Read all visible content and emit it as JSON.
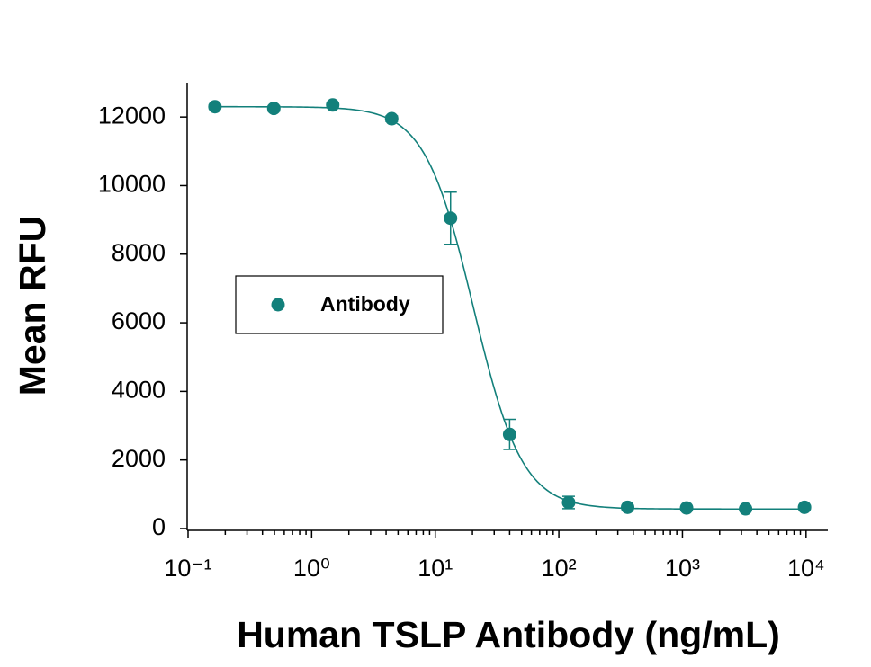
{
  "chart_data": {
    "type": "scatter",
    "x_label": "Human TSLP Antibody (ng/mL)",
    "y_label": "Mean RFU",
    "x_scale": "log",
    "x": [
      0.165,
      0.494,
      1.48,
      4.44,
      13.3,
      40,
      120,
      360,
      1080,
      3240,
      9720
    ],
    "series": [
      {
        "name": "Antibody",
        "color": "#13807b",
        "values": [
          12300,
          12250,
          12350,
          11950,
          9050,
          2745,
          760,
          620,
          600,
          575,
          620
        ],
        "errors": [
          60,
          80,
          50,
          80,
          760,
          440,
          180,
          50,
          40,
          40,
          50
        ],
        "fit": {
          "top": 12300,
          "bottom": 570,
          "ec50": 20.4,
          "hill": 2.2
        }
      }
    ],
    "xlim": [
      0.1,
      15000
    ],
    "xticks": [
      {
        "value": 0.1,
        "label": "10⁻¹"
      },
      {
        "value": 1,
        "label": "10⁰"
      },
      {
        "value": 10,
        "label": "10¹"
      },
      {
        "value": 100,
        "label": "10²"
      },
      {
        "value": 1000,
        "label": "10³"
      },
      {
        "value": 10000,
        "label": "10⁴"
      }
    ],
    "ylim": [
      0,
      13000
    ],
    "yticks": [
      0,
      2000,
      4000,
      6000,
      8000,
      10000,
      12000
    ],
    "legend": "center left",
    "grid": false
  }
}
